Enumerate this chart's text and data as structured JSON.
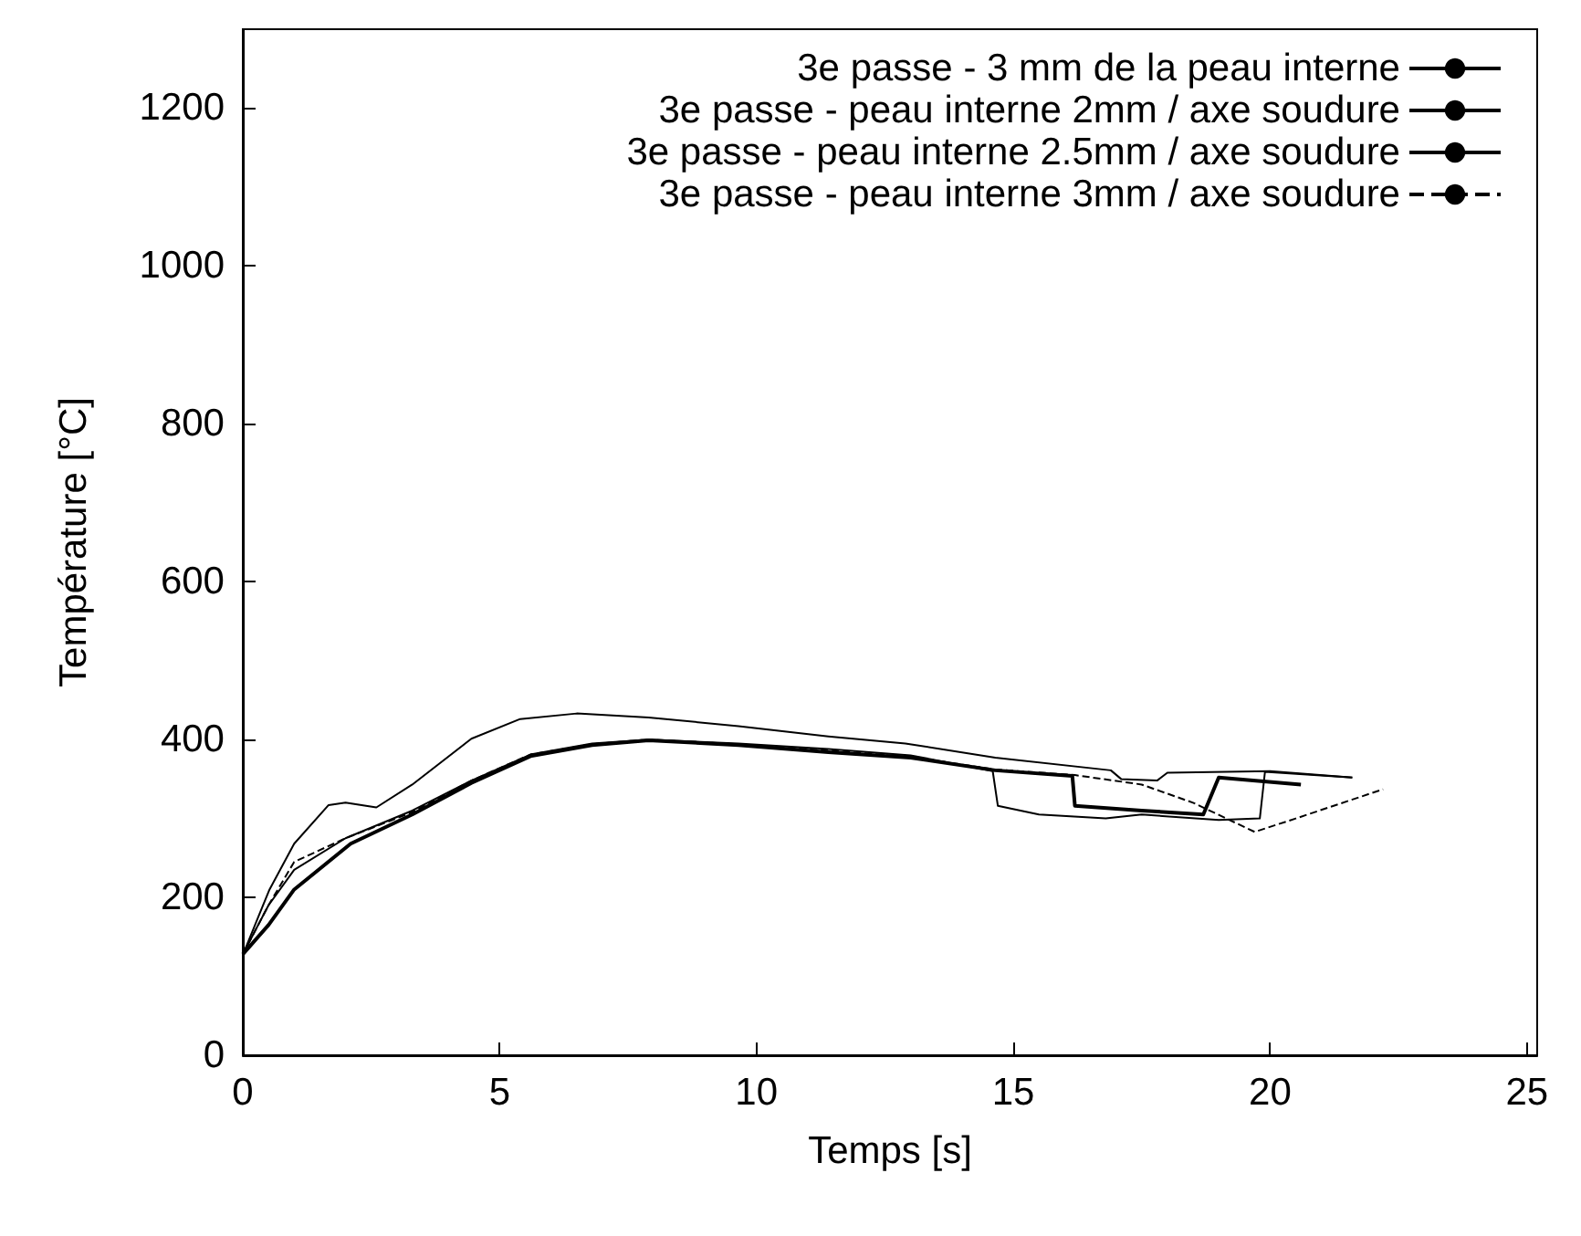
{
  "chart_data": {
    "type": "line",
    "xlabel": "Temps [s]",
    "ylabel": "Température [°C]",
    "xlim": [
      0,
      25.2
    ],
    "xticks": [
      0,
      5,
      10,
      15,
      20,
      25
    ],
    "ylim": [
      0,
      1300
    ],
    "yticks": [
      0,
      200,
      400,
      600,
      800,
      1000,
      1200
    ],
    "grid": false,
    "legend": "top right",
    "marker": "none",
    "series": [
      {
        "name": "3e passe - 3 mm de la peau interne",
        "color": "#000000",
        "line_style": "solid",
        "x": [
          0,
          0.3,
          0.52,
          1.0,
          1.67,
          2.0,
          2.6,
          3.3,
          4.45,
          5.4,
          6.5,
          7.9,
          9.65,
          11.4,
          12.9,
          14.65,
          16.9,
          17.1,
          17.8,
          18.0,
          20.0,
          21.6
        ],
        "values": [
          127,
          175,
          210,
          268,
          317,
          320,
          314,
          343,
          401,
          426,
          433,
          428,
          417,
          404,
          395,
          377,
          361,
          350,
          348,
          358,
          360,
          352
        ]
      },
      {
        "name": "3e passe - peau interne 2mm / axe soudure",
        "color": "#000000",
        "line_style": "solid",
        "x": [
          0,
          0.5,
          1.0,
          2.0,
          3.3,
          4.45,
          5.6,
          6.8,
          7.9,
          9.65,
          11.4,
          13.0,
          14.6,
          14.7,
          15.5,
          16.8,
          17.5,
          19.0,
          19.8,
          19.9,
          21.6
        ],
        "values": [
          128,
          190,
          235,
          275,
          310,
          348,
          381,
          395,
          400,
          395,
          388,
          380,
          360,
          316,
          305,
          300,
          305,
          298,
          300,
          359,
          352
        ]
      },
      {
        "name": "3e passe - peau interne 2.5mm / axe soudure",
        "color": "#000000",
        "line_style": "solid",
        "x": [
          0,
          0.5,
          1.0,
          2.1,
          3.3,
          4.45,
          5.6,
          6.8,
          7.9,
          9.65,
          11.4,
          13.0,
          14.65,
          16.15,
          16.2,
          17.5,
          18.7,
          19.0,
          20.6
        ],
        "values": [
          128,
          165,
          210,
          268,
          305,
          345,
          379,
          393,
          399,
          393,
          384,
          377,
          361,
          354,
          316,
          310,
          305,
          352,
          343
        ]
      },
      {
        "name": "3e passe - peau interne 3mm / axe soudure",
        "color": "#000000",
        "line_style": "dashed",
        "x": [
          0,
          0.5,
          1.0,
          2.0,
          3.3,
          4.45,
          5.6,
          6.8,
          7.9,
          9.65,
          11.4,
          13.0,
          14.65,
          16.2,
          17.5,
          18.5,
          19.7,
          20.5,
          22.2
        ],
        "values": [
          128,
          190,
          245,
          275,
          308,
          348,
          381,
          394,
          400,
          394,
          386,
          378,
          362,
          355,
          343,
          320,
          283,
          300,
          337
        ]
      }
    ]
  }
}
